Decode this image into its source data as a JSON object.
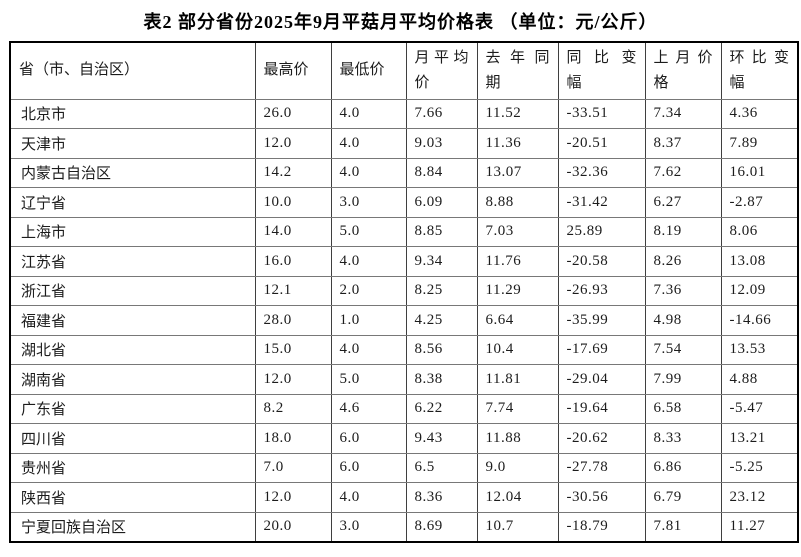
{
  "title": "表2 部分省份2025年9月平菇月平均价格表 （单位：元/公斤）",
  "table": {
    "headers": [
      "省（市、自治区）",
      "最高价",
      "最低价",
      "月平均价",
      "去年同期",
      "同比变幅",
      "上月价格",
      "环比变幅"
    ],
    "rows": [
      [
        "北京市",
        "26.0",
        "4.0",
        "7.66",
        "11.52",
        "-33.51",
        "7.34",
        "4.36"
      ],
      [
        "天津市",
        "12.0",
        "4.0",
        "9.03",
        "11.36",
        "-20.51",
        "8.37",
        "7.89"
      ],
      [
        "内蒙古自治区",
        "14.2",
        "4.0",
        "8.84",
        "13.07",
        "-32.36",
        "7.62",
        "16.01"
      ],
      [
        "辽宁省",
        "10.0",
        "3.0",
        "6.09",
        "8.88",
        "-31.42",
        "6.27",
        "-2.87"
      ],
      [
        "上海市",
        "14.0",
        "5.0",
        "8.85",
        "7.03",
        "25.89",
        "8.19",
        "8.06"
      ],
      [
        "江苏省",
        "16.0",
        "4.0",
        "9.34",
        "11.76",
        "-20.58",
        "8.26",
        "13.08"
      ],
      [
        "浙江省",
        "12.1",
        "2.0",
        "8.25",
        "11.29",
        "-26.93",
        "7.36",
        "12.09"
      ],
      [
        "福建省",
        "28.0",
        "1.0",
        "4.25",
        "6.64",
        "-35.99",
        "4.98",
        "-14.66"
      ],
      [
        "湖北省",
        "15.0",
        "4.0",
        "8.56",
        "10.4",
        "-17.69",
        "7.54",
        "13.53"
      ],
      [
        "湖南省",
        "12.0",
        "5.0",
        "8.38",
        "11.81",
        "-29.04",
        "7.99",
        "4.88"
      ],
      [
        "广东省",
        "8.2",
        "4.6",
        "6.22",
        "7.74",
        "-19.64",
        "6.58",
        "-5.47"
      ],
      [
        "四川省",
        "18.0",
        "6.0",
        "9.43",
        "11.88",
        "-20.62",
        "8.33",
        "13.21"
      ],
      [
        "贵州省",
        "7.0",
        "6.0",
        "6.5",
        "9.0",
        "-27.78",
        "6.86",
        "-5.25"
      ],
      [
        "陕西省",
        "12.0",
        "4.0",
        "8.36",
        "12.04",
        "-30.56",
        "6.79",
        "23.12"
      ],
      [
        "宁夏回族自治区",
        "20.0",
        "3.0",
        "8.69",
        "10.7",
        "-18.79",
        "7.81",
        "11.27"
      ]
    ]
  }
}
